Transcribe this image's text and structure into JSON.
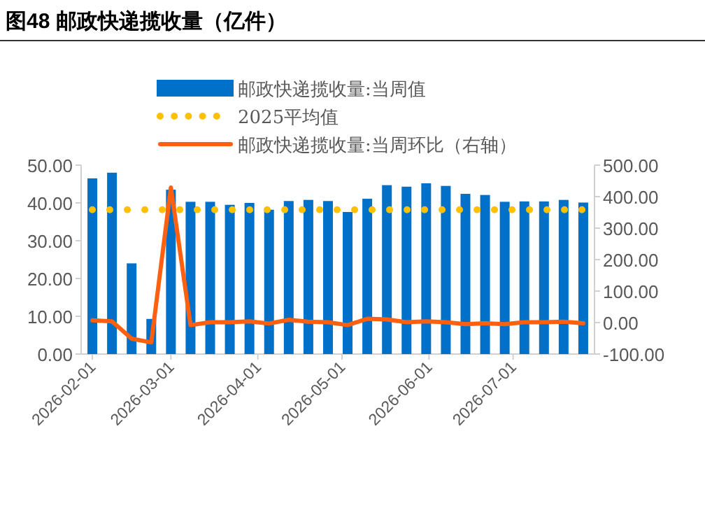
{
  "chart_data": {
    "type": "bar",
    "title": "图48 邮政快递揽收量（亿件）",
    "x": [
      "2026-02-01",
      "2026-02-08",
      "2026-02-15",
      "2026-02-22",
      "2026-03-01",
      "2026-03-08",
      "2026-03-15",
      "2026-03-22",
      "2026-03-29",
      "2026-04-05",
      "2026-04-12",
      "2026-04-19",
      "2026-04-26",
      "2026-05-03",
      "2026-05-10",
      "2026-05-17",
      "2026-05-24",
      "2026-05-31",
      "2026-06-07",
      "2026-06-14",
      "2026-06-21",
      "2026-06-28",
      "2026-07-05",
      "2026-07-12",
      "2026-07-19",
      "2026-07-26"
    ],
    "series": [
      {
        "name": "邮政快递揽收量:当周值",
        "color": "#0070c8",
        "values": [
          46.5,
          48,
          24,
          9.3,
          43.5,
          40.3,
          40.3,
          39.5,
          40,
          38.2,
          40.5,
          40.8,
          40.5,
          37.6,
          41.1,
          44.7,
          44.3,
          45.2,
          44.5,
          42.4,
          42.1,
          40.3,
          40.4,
          40.4,
          40.8,
          40.1
        ]
      },
      {
        "name": "2025平均值",
        "type": "line",
        "color": "#ffc000",
        "line_style": "dotted",
        "values": [
          38.2,
          38.2,
          38.2,
          38.2,
          38.2,
          38.2,
          38.2,
          38.2,
          38.2,
          38.2,
          38.2,
          38.2,
          38.2,
          38.2,
          38.2,
          38.2,
          38.2,
          38.2,
          38.2,
          38.2,
          38.2,
          38.2,
          38.2,
          38.2,
          38.2,
          38.2
        ]
      },
      {
        "name": "邮政快递揽收量:当周环比（右轴）",
        "type": "line",
        "axis": "y2",
        "color": "#ff6010",
        "line_style": "solid",
        "values": [
          7,
          4,
          -51,
          -63,
          429,
          -8,
          1,
          1,
          4,
          -3,
          9,
          3,
          1,
          -8,
          12,
          10,
          1,
          4,
          1,
          -5,
          -2,
          -5,
          1,
          1,
          3,
          -2
        ]
      }
    ],
    "xlim": [
      "2026-01-28",
      "2026-07-30"
    ],
    "xticks": [
      "2026-02-01",
      "2026-03-01",
      "2026-04-01",
      "2026-05-01",
      "2026-06-01",
      "2026-07-01"
    ],
    "ylim": [
      0,
      50
    ],
    "yticks": [
      {
        "value": 0,
        "label": "0.00"
      },
      {
        "value": 10,
        "label": "10.00"
      },
      {
        "value": 20,
        "label": "20.00"
      },
      {
        "value": 30,
        "label": "30.00"
      },
      {
        "value": 40,
        "label": "40.00"
      },
      {
        "value": 50,
        "label": "50.00"
      }
    ],
    "y2lim": [
      -100,
      500
    ],
    "y2ticks": [
      {
        "value": -100,
        "label": "-100.00"
      },
      {
        "value": 0,
        "label": "0.00"
      },
      {
        "value": 100,
        "label": "100.00"
      },
      {
        "value": 200,
        "label": "200.00"
      },
      {
        "value": 300,
        "label": "300.00"
      },
      {
        "value": 400,
        "label": "400.00"
      },
      {
        "value": 500,
        "label": "500.00"
      }
    ],
    "legend": "top",
    "grid": false
  }
}
